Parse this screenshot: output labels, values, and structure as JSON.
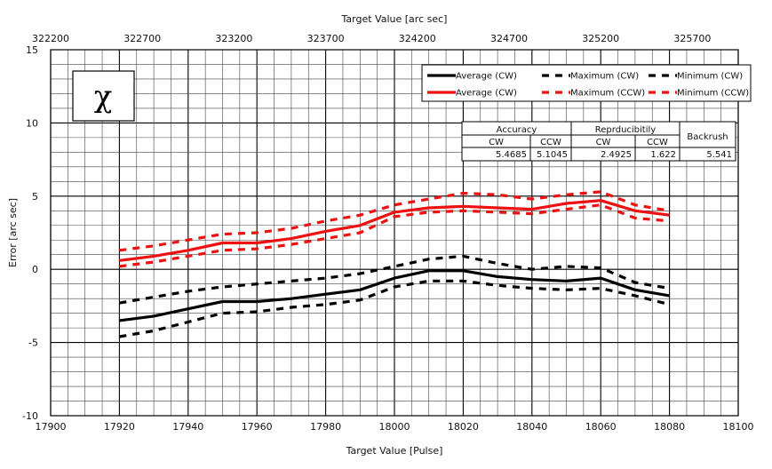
{
  "chart_data": {
    "type": "line",
    "title": "",
    "xlabel": "Target Value [Pulse]",
    "x2label": "Target Value [arc sec]",
    "ylabel": "Error [arc sec]",
    "xlim": [
      17900,
      18100
    ],
    "x2lim": [
      322200,
      325950
    ],
    "ylim": [
      -10,
      15
    ],
    "grid": true,
    "xticks": [
      17900,
      17920,
      17940,
      17960,
      17980,
      18000,
      18020,
      18040,
      18060,
      18080,
      18100
    ],
    "x2ticks": [
      322200,
      322700,
      323200,
      323700,
      324200,
      324700,
      325200,
      325700
    ],
    "yticks": [
      15,
      10,
      5,
      0,
      -5,
      -10
    ],
    "symbol": "χ",
    "x": [
      17920,
      17930,
      17940,
      17950,
      17960,
      17970,
      17980,
      17990,
      18000,
      18010,
      18020,
      18030,
      18040,
      18050,
      18060,
      18070,
      18080
    ],
    "series": [
      {
        "name": "Average (CW)",
        "color": "#000000",
        "style": "solid",
        "values": [
          -3.5,
          -3.2,
          -2.7,
          -2.2,
          -2.2,
          -2.0,
          -1.7,
          -1.4,
          -0.6,
          -0.1,
          -0.1,
          -0.5,
          -0.7,
          -0.8,
          -0.6,
          -1.4,
          -1.8
        ]
      },
      {
        "name": "Maximum (CW)",
        "color": "#000000",
        "style": "dashed",
        "values": [
          -2.3,
          -1.9,
          -1.5,
          -1.2,
          -1.0,
          -0.8,
          -0.6,
          -0.3,
          0.2,
          0.7,
          0.9,
          0.4,
          0.0,
          0.2,
          0.1,
          -0.9,
          -1.3
        ]
      },
      {
        "name": "Minimum (CW)",
        "color": "#000000",
        "style": "dashed",
        "values": [
          -4.6,
          -4.2,
          -3.6,
          -3.0,
          -2.9,
          -2.6,
          -2.4,
          -2.1,
          -1.2,
          -0.8,
          -0.8,
          -1.1,
          -1.3,
          -1.4,
          -1.3,
          -1.8,
          -2.4
        ]
      },
      {
        "name": "Average (CW)",
        "color": "#ee1111",
        "style": "solid",
        "values": [
          0.6,
          0.9,
          1.3,
          1.8,
          1.8,
          2.1,
          2.6,
          3.0,
          3.9,
          4.2,
          4.3,
          4.2,
          4.1,
          4.5,
          4.7,
          4.0,
          3.7
        ]
      },
      {
        "name": "Maximum (CCW)",
        "color": "#ee1111",
        "style": "dashed",
        "values": [
          1.3,
          1.6,
          2.0,
          2.4,
          2.5,
          2.8,
          3.3,
          3.7,
          4.4,
          4.8,
          5.2,
          5.1,
          4.8,
          5.1,
          5.3,
          4.4,
          4.0
        ]
      },
      {
        "name": "Minimum (CCW)",
        "color": "#ee1111",
        "style": "dashed",
        "values": [
          0.2,
          0.5,
          0.9,
          1.3,
          1.4,
          1.7,
          2.1,
          2.5,
          3.6,
          3.9,
          4.0,
          3.9,
          3.8,
          4.1,
          4.4,
          3.5,
          3.3
        ]
      }
    ],
    "legend_position": "top-right",
    "table": {
      "group_headers": [
        "Accuracy",
        "Reprducibitily",
        "Backrush"
      ],
      "sub_headers": [
        "CW",
        "CCW",
        "CW",
        "CCW"
      ],
      "values": [
        "5.4685",
        "5.1045",
        "2.4925",
        "1.622",
        "5.541"
      ]
    }
  }
}
